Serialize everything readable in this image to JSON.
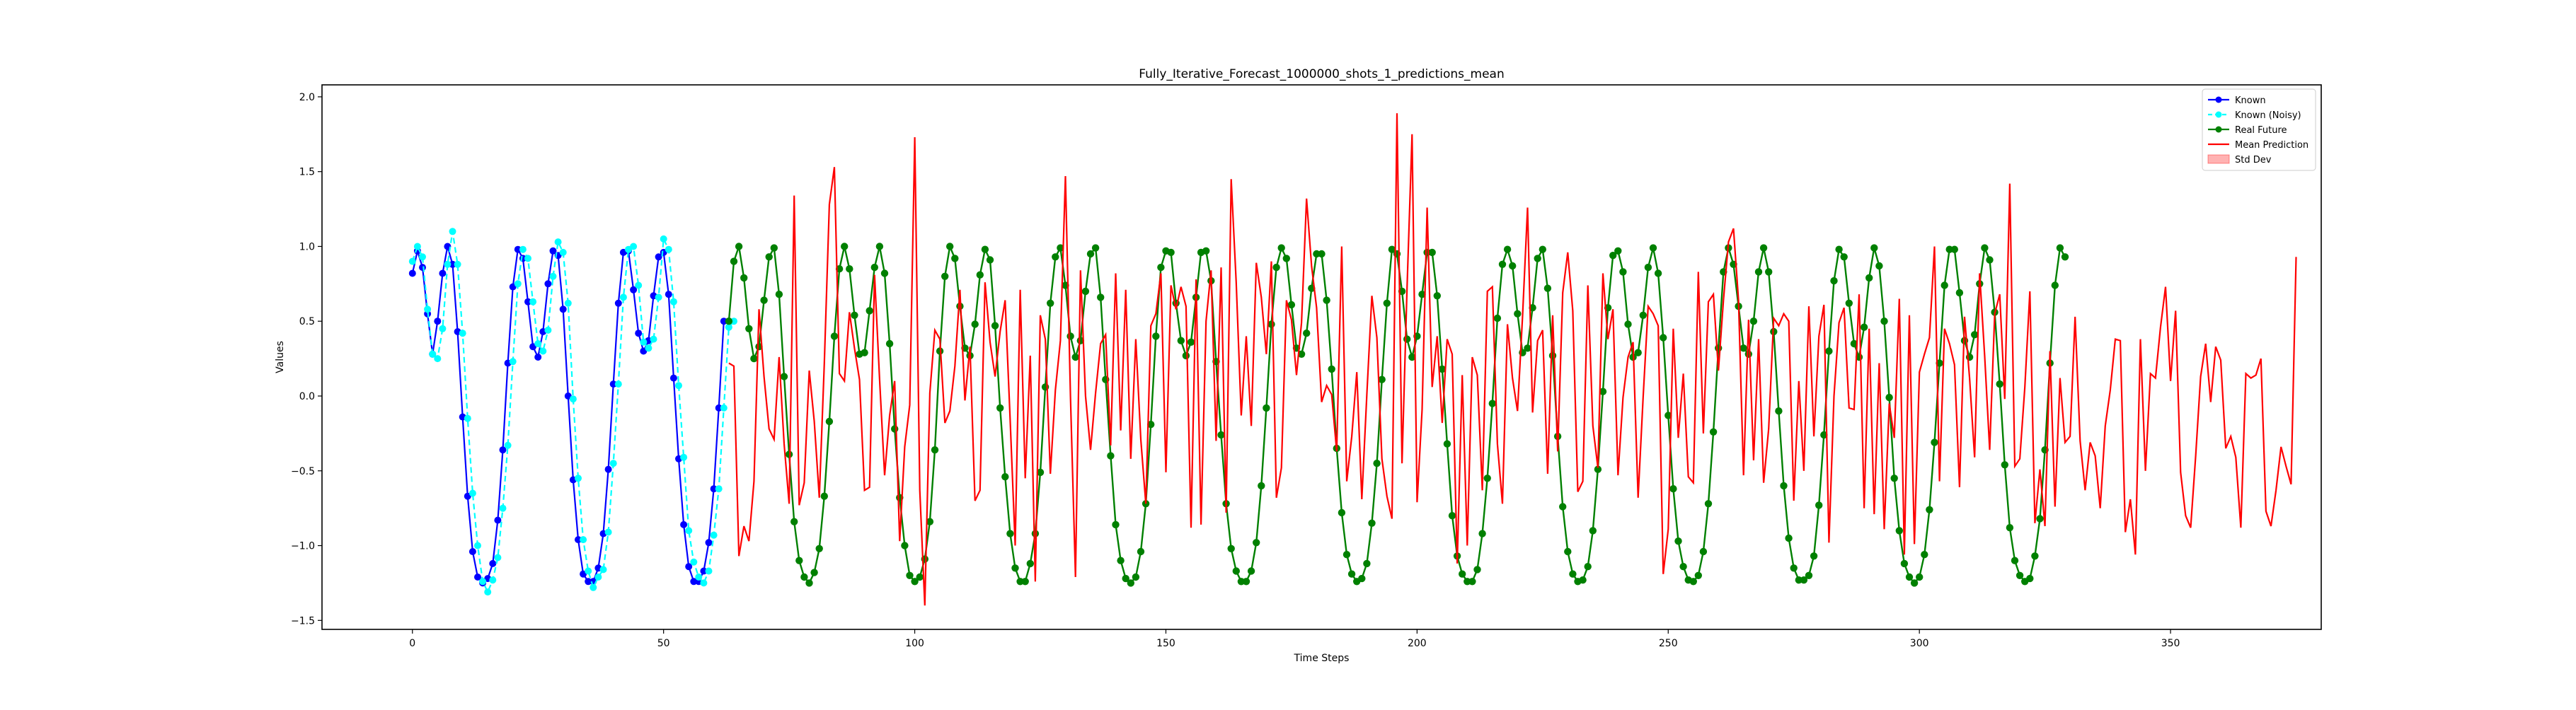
{
  "chart_data": {
    "type": "line",
    "title": "Fully_Iterative_Forecast_1000000_shots_1_predictions_mean",
    "xlabel": "Time Steps",
    "ylabel": "Values",
    "xlim": [
      -18,
      380
    ],
    "ylim": [
      -1.56,
      2.08
    ],
    "xticks": [
      0,
      50,
      100,
      150,
      200,
      250,
      300,
      350
    ],
    "yticks": [
      -1.5,
      -1.0,
      -0.5,
      0.0,
      0.5,
      1.0,
      1.5,
      2.0
    ],
    "xtick_labels": [
      "0",
      "50",
      "100",
      "150",
      "200",
      "250",
      "300",
      "350"
    ],
    "ytick_labels": [
      "−1.5",
      "−1.0",
      "−0.5",
      "0.0",
      "0.5",
      "1.0",
      "1.5",
      "2.0"
    ],
    "grid": false,
    "legend_position": "top-right",
    "legend": [
      {
        "label": "Known",
        "color": "#0000ff",
        "style": "line-marker"
      },
      {
        "label": "Known (Noisy)",
        "color": "#00ffff",
        "style": "dashed-marker"
      },
      {
        "label": "Real Future",
        "color": "#008000",
        "style": "line-marker"
      },
      {
        "label": "Mean Prediction",
        "color": "#ff0000",
        "style": "line"
      },
      {
        "label": "Std Dev",
        "color": "#ff0000",
        "style": "patch"
      }
    ],
    "series": [
      {
        "name": "Known",
        "color": "#0000ff",
        "x_start": 0,
        "values": [
          0.82,
          0.97,
          0.86,
          0.55,
          0.28,
          0.5,
          0.82,
          1.0,
          0.88,
          0.43,
          -0.14,
          -0.67,
          -1.04,
          -1.21,
          -1.25,
          -1.22,
          -1.12,
          -0.83,
          -0.36,
          0.22,
          0.73,
          0.98,
          0.92,
          0.63,
          0.33,
          0.26,
          0.43,
          0.75,
          0.97,
          0.94,
          0.58,
          0.0,
          -0.56,
          -0.96,
          -1.19,
          -1.24,
          -1.24,
          -1.15,
          -0.92,
          -0.49,
          0.08,
          0.62,
          0.96,
          0.97,
          0.71,
          0.42,
          0.3,
          0.37,
          0.67,
          0.93,
          0.96,
          0.68,
          0.12,
          -0.42,
          -0.86,
          -1.14,
          -1.24,
          -1.24,
          -1.17,
          -0.98,
          -0.62,
          -0.08,
          0.5
        ]
      },
      {
        "name": "Known (Noisy)",
        "color": "#00ffff",
        "x_start": 0,
        "values": [
          0.9,
          1.0,
          0.93,
          0.58,
          0.28,
          0.25,
          0.45,
          0.88,
          1.1,
          0.88,
          0.42,
          -0.15,
          -0.65,
          -1.0,
          -1.24,
          -1.31,
          -1.23,
          -1.08,
          -0.75,
          -0.33,
          0.23,
          0.75,
          0.98,
          0.92,
          0.63,
          0.35,
          0.3,
          0.44,
          0.8,
          1.03,
          0.96,
          0.62,
          -0.02,
          -0.55,
          -0.96,
          -1.17,
          -1.28,
          -1.21,
          -1.16,
          -0.91,
          -0.45,
          0.08,
          0.66,
          0.98,
          1.0,
          0.74,
          0.36,
          0.32,
          0.38,
          0.66,
          1.05,
          0.98,
          0.63,
          0.07,
          -0.41,
          -0.9,
          -1.11,
          -1.21,
          -1.25,
          -1.17,
          -0.93,
          -0.62,
          -0.08,
          0.46,
          0.5
        ]
      },
      {
        "name": "Real Future",
        "color": "#008000",
        "x_start": 63,
        "values": [
          0.5,
          0.9,
          1.0,
          0.79,
          0.45,
          0.25,
          0.33,
          0.64,
          0.93,
          0.99,
          0.68,
          0.13,
          -0.39,
          -0.84,
          -1.1,
          -1.21,
          -1.25,
          -1.18,
          -1.02,
          -0.67,
          -0.17,
          0.4,
          0.85,
          1.0,
          0.85,
          0.54,
          0.28,
          0.29,
          0.57,
          0.86,
          1.0,
          0.82,
          0.35,
          -0.22,
          -0.68,
          -1.0,
          -1.2,
          -1.24,
          -1.21,
          -1.09,
          -0.84,
          -0.36,
          0.3,
          0.8,
          1.0,
          0.92,
          0.6,
          0.32,
          0.27,
          0.48,
          0.81,
          0.98,
          0.91,
          0.47,
          -0.08,
          -0.54,
          -0.92,
          -1.15,
          -1.24,
          -1.24,
          -1.12,
          -0.92,
          -0.51,
          0.06,
          0.62,
          0.93,
          0.99,
          0.74,
          0.4,
          0.26,
          0.37,
          0.7,
          0.95,
          0.99,
          0.66,
          0.11,
          -0.4,
          -0.86,
          -1.1,
          -1.22,
          -1.25,
          -1.21,
          -1.04,
          -0.72,
          -0.19,
          0.4,
          0.86,
          0.97,
          0.96,
          0.62,
          0.37,
          0.27,
          0.36,
          0.66,
          0.96,
          0.97,
          0.77,
          0.23,
          -0.26,
          -0.72,
          -1.02,
          -1.17,
          -1.24,
          -1.24,
          -1.17,
          -0.98,
          -0.6,
          -0.08,
          0.48,
          0.86,
          0.99,
          0.92,
          0.61,
          0.32,
          0.28,
          0.42,
          0.72,
          0.95,
          0.95,
          0.64,
          0.18,
          -0.35,
          -0.78,
          -1.06,
          -1.19,
          -1.24,
          -1.22,
          -1.12,
          -0.85,
          -0.45,
          0.11,
          0.62,
          0.98,
          0.95,
          0.7,
          0.38,
          0.26,
          0.4,
          0.68,
          0.96,
          0.96,
          0.67,
          0.18,
          -0.32,
          -0.8,
          -1.07,
          -1.19,
          -1.24,
          -1.24,
          -1.16,
          -0.92,
          -0.55,
          -0.05,
          0.52,
          0.88,
          0.98,
          0.87,
          0.55,
          0.29,
          0.32,
          0.59,
          0.92,
          0.98,
          0.72,
          0.27,
          -0.27,
          -0.74,
          -1.04,
          -1.19,
          -1.24,
          -1.23,
          -1.14,
          -0.9,
          -0.49,
          0.03,
          0.59,
          0.94,
          0.97,
          0.83,
          0.48,
          0.26,
          0.29,
          0.54,
          0.86,
          0.99,
          0.82,
          0.39,
          -0.13,
          -0.62,
          -0.97,
          -1.14,
          -1.23,
          -1.24,
          -1.2,
          -1.04,
          -0.72,
          -0.24,
          0.32,
          0.83,
          0.99,
          0.88,
          0.6,
          0.32,
          0.28,
          0.5,
          0.83,
          0.99,
          0.83,
          0.43,
          -0.1,
          -0.6,
          -0.95,
          -1.15,
          -1.23,
          -1.23,
          -1.2,
          -1.07,
          -0.73,
          -0.26,
          0.3,
          0.77,
          0.98,
          0.93,
          0.62,
          0.35,
          0.26,
          0.46,
          0.79,
          0.99,
          0.87,
          0.5,
          -0.01,
          -0.55,
          -0.9,
          -1.12,
          -1.21,
          -1.25,
          -1.21,
          -1.06,
          -0.76,
          -0.31,
          0.22,
          0.74,
          0.98,
          0.98,
          0.69,
          0.37,
          0.26,
          0.41,
          0.75,
          0.99,
          0.91,
          0.56,
          0.08,
          -0.46,
          -0.88,
          -1.1,
          -1.2,
          -1.24,
          -1.22,
          -1.07,
          -0.82,
          -0.36,
          0.22,
          0.74,
          0.99,
          0.93
        ]
      },
      {
        "name": "Mean Prediction",
        "color": "#ff0000",
        "x_start": 63,
        "values": [
          0.22,
          0.2,
          -1.07,
          -0.87,
          -0.97,
          -0.57,
          0.58,
          0.13,
          -0.22,
          -0.29,
          0.26,
          -0.32,
          -0.72,
          1.34,
          -0.73,
          -0.58,
          0.17,
          -0.17,
          -0.68,
          0.22,
          1.28,
          1.53,
          0.15,
          0.1,
          0.56,
          0.32,
          0.11,
          -0.63,
          -0.61,
          0.81,
          0.11,
          -0.53,
          -0.13,
          0.1,
          -0.97,
          -0.34,
          -0.06,
          1.73,
          -0.63,
          -1.4,
          0.02,
          0.44,
          0.38,
          -0.18,
          -0.1,
          0.2,
          0.71,
          -0.03,
          0.33,
          -0.7,
          -0.63,
          0.76,
          0.36,
          0.13,
          0.43,
          0.64,
          -0.16,
          -1.0,
          0.71,
          -0.55,
          0.27,
          -1.24,
          0.54,
          0.38,
          -0.52,
          0.04,
          0.37,
          1.47,
          0.0,
          -1.21,
          0.84,
          0.0,
          -0.36,
          0.02,
          0.35,
          0.41,
          -0.33,
          0.82,
          -0.23,
          0.71,
          -0.42,
          0.38,
          -0.29,
          -0.72,
          0.47,
          0.55,
          0.82,
          -0.51,
          0.74,
          0.58,
          0.73,
          0.6,
          -0.88,
          0.78,
          -0.86,
          0.5,
          0.84,
          -0.3,
          0.86,
          -0.78,
          1.45,
          0.76,
          -0.13,
          0.4,
          -0.2,
          0.89,
          0.66,
          0.28,
          0.9,
          -0.68,
          -0.48,
          0.64,
          0.51,
          0.14,
          0.49,
          1.32,
          0.87,
          0.59,
          -0.04,
          0.07,
          0.01,
          -0.37,
          1.0,
          -0.57,
          -0.27,
          0.16,
          -0.69,
          0.01,
          0.67,
          0.39,
          -0.42,
          -0.67,
          -0.82,
          1.89,
          -0.45,
          0.72,
          1.75,
          -0.71,
          -0.09,
          1.26,
          0.06,
          0.4,
          -0.18,
          0.38,
          0.28,
          -1.12,
          0.14,
          -1.0,
          0.26,
          0.14,
          -0.63,
          0.7,
          0.73,
          -0.32,
          -0.72,
          0.48,
          0.12,
          -0.1,
          0.53,
          1.26,
          -0.11,
          0.37,
          0.44,
          -0.52,
          0.54,
          -0.37,
          0.69,
          0.96,
          0.57,
          -0.64,
          -0.57,
          0.74,
          -0.2,
          -0.48,
          0.82,
          0.38,
          0.58,
          -0.53,
          -0.01,
          0.26,
          0.36,
          -0.68,
          -0.01,
          0.6,
          0.55,
          0.47,
          -1.19,
          -0.89,
          0.45,
          -0.28,
          0.15,
          -0.54,
          -0.58,
          0.83,
          -0.25,
          0.63,
          0.68,
          0.17,
          0.64,
          1.03,
          1.12,
          0.64,
          -0.53,
          0.51,
          -0.43,
          0.38,
          -0.58,
          -0.22,
          0.52,
          0.47,
          0.55,
          0.5,
          -0.7,
          0.1,
          -0.5,
          0.6,
          -0.27,
          0.4,
          0.61,
          -0.98,
          0.0,
          0.49,
          0.59,
          -0.08,
          -0.09,
          0.68,
          -0.75,
          0.45,
          -0.79,
          0.22,
          -0.89,
          -0.05,
          -0.28,
          0.65,
          -1.06,
          0.54,
          -0.99,
          0.16,
          0.28,
          0.39,
          1.0,
          -0.57,
          0.45,
          0.35,
          0.21,
          -0.61,
          0.53,
          0.12,
          -0.41,
          0.82,
          0.27,
          -0.36,
          0.55,
          0.68,
          -0.02,
          1.42,
          -0.47,
          -0.42,
          0.06,
          0.7,
          -0.85,
          -0.49,
          -0.87,
          0.3,
          -0.74,
          0.12,
          -0.31,
          -0.27,
          0.53,
          -0.3,
          -0.63,
          -0.31,
          -0.4,
          -0.75,
          -0.2,
          0.04,
          0.38,
          0.37,
          -0.91,
          -0.69,
          -1.06,
          0.38,
          -0.5,
          0.15,
          0.12,
          0.46,
          0.73,
          0.1,
          0.57,
          -0.51,
          -0.8,
          -0.88,
          -0.4,
          0.13,
          0.35,
          -0.04,
          0.33,
          0.24,
          -0.35,
          -0.27,
          -0.41,
          -0.88,
          0.15,
          0.12,
          0.14,
          0.25,
          -0.77,
          -0.87,
          -0.63,
          -0.34,
          -0.47,
          -0.59,
          0.93
        ]
      }
    ]
  }
}
